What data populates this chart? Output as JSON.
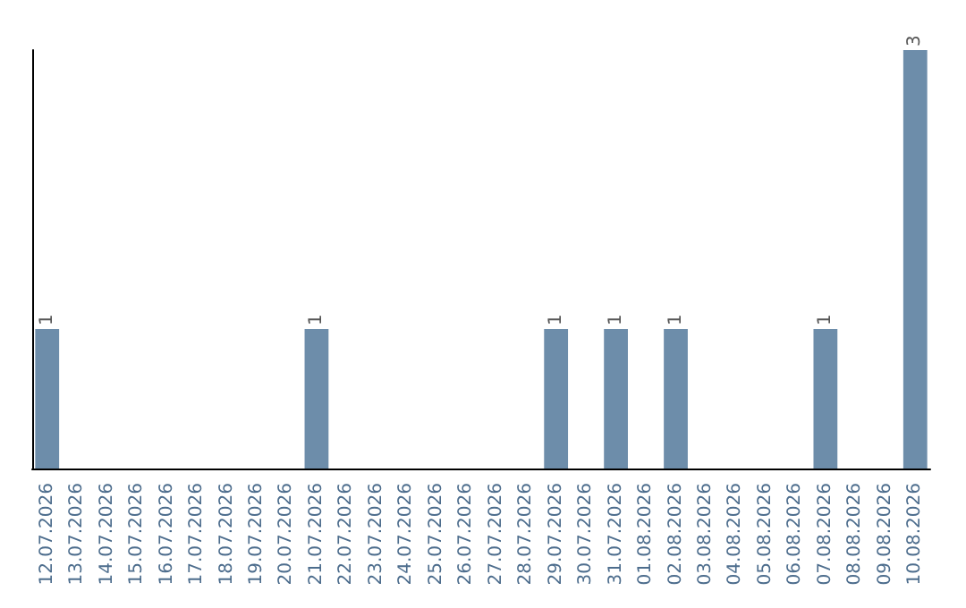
{
  "chart_data": {
    "type": "bar",
    "categories": [
      "12.07.2026",
      "13.07.2026",
      "14.07.2026",
      "15.07.2026",
      "16.07.2026",
      "17.07.2026",
      "18.07.2026",
      "19.07.2026",
      "20.07.2026",
      "21.07.2026",
      "22.07.2026",
      "23.07.2026",
      "24.07.2026",
      "25.07.2026",
      "26.07.2026",
      "27.07.2026",
      "28.07.2026",
      "29.07.2026",
      "30.07.2026",
      "31.07.2026",
      "01.08.2026",
      "02.08.2026",
      "03.08.2026",
      "04.08.2026",
      "05.08.2026",
      "06.08.2026",
      "07.08.2026",
      "08.08.2026",
      "09.08.2026",
      "10.08.2026"
    ],
    "values": [
      1,
      0,
      0,
      0,
      0,
      0,
      0,
      0,
      0,
      1,
      0,
      0,
      0,
      0,
      0,
      0,
      0,
      1,
      0,
      1,
      0,
      1,
      0,
      0,
      0,
      0,
      1,
      0,
      0,
      3
    ],
    "value_labels": [
      "1",
      null,
      null,
      null,
      null,
      null,
      null,
      null,
      null,
      "1",
      null,
      null,
      null,
      null,
      null,
      null,
      null,
      "1",
      null,
      "1",
      null,
      "1",
      null,
      null,
      null,
      null,
      "1",
      null,
      null,
      "3"
    ],
    "color": "#6d8daa",
    "tick_labels": "x",
    "grid": false
  }
}
